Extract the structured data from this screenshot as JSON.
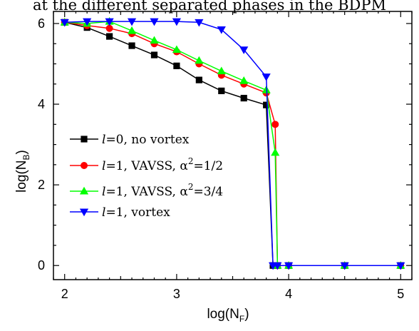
{
  "caption_fragment": "at the different separated phases in the BDPM",
  "chart_data": {
    "type": "line",
    "title": "",
    "xlabel": "log(N",
    "xlabel_sub": "F",
    "xlabel_close": ")",
    "ylabel": "log(N",
    "ylabel_sub": "B",
    "ylabel_close": ")",
    "xlim": [
      1.9,
      5.1
    ],
    "ylim": [
      -0.35,
      6.3
    ],
    "xticks": [
      2,
      3,
      4,
      5
    ],
    "yticks": [
      0,
      2,
      4,
      6
    ],
    "grid": false,
    "legend_position": "lower-left",
    "series": [
      {
        "l_symbol": "l",
        "l_value": "=0, no vortex",
        "color": "#000000",
        "marker": "square",
        "x": [
          2.0,
          2.2,
          2.4,
          2.6,
          2.8,
          3.0,
          3.2,
          3.4,
          3.6,
          3.8,
          3.86,
          3.9,
          4.0,
          4.5,
          5.0
        ],
        "y": [
          6.03,
          5.9,
          5.68,
          5.45,
          5.22,
          4.95,
          4.6,
          4.33,
          4.15,
          3.98,
          0.0,
          0.0,
          0.0,
          0.0,
          0.0
        ]
      },
      {
        "l_symbol": "l",
        "l_value": "=1, VAVSS, α",
        "sup": "2",
        "l_tail": "=1/2",
        "color": "#ff0000",
        "marker": "circle",
        "x": [
          2.0,
          2.2,
          2.4,
          2.6,
          2.8,
          3.0,
          3.2,
          3.4,
          3.6,
          3.8,
          3.88,
          3.9,
          4.0,
          4.5,
          5.0
        ],
        "y": [
          6.03,
          5.95,
          5.88,
          5.75,
          5.5,
          5.3,
          5.0,
          4.72,
          4.5,
          4.28,
          3.5,
          0.0,
          0.0,
          0.0,
          0.0
        ]
      },
      {
        "l_symbol": "l",
        "l_value": "=1, VAVSS, α",
        "sup": "2",
        "l_tail": "=3/4",
        "color": "#00ff00",
        "marker": "triangle-up",
        "x": [
          2.0,
          2.2,
          2.4,
          2.6,
          2.8,
          3.0,
          3.2,
          3.4,
          3.6,
          3.8,
          3.88,
          3.9,
          4.0,
          4.5,
          5.0
        ],
        "y": [
          6.03,
          6.0,
          6.05,
          5.82,
          5.58,
          5.35,
          5.08,
          4.82,
          4.58,
          4.35,
          2.8,
          0.0,
          0.0,
          0.0,
          0.0
        ]
      },
      {
        "l_symbol": "l",
        "l_value": "=1, vortex",
        "color": "#0000ff",
        "marker": "triangle-down",
        "x": [
          2.0,
          2.2,
          2.4,
          2.6,
          2.8,
          3.0,
          3.2,
          3.4,
          3.6,
          3.8,
          3.86,
          3.9,
          4.0,
          4.5,
          5.0
        ],
        "y": [
          6.03,
          6.05,
          6.05,
          6.05,
          6.05,
          6.05,
          6.03,
          5.85,
          5.35,
          4.68,
          0.0,
          0.0,
          0.0,
          0.0,
          0.0
        ]
      }
    ]
  }
}
